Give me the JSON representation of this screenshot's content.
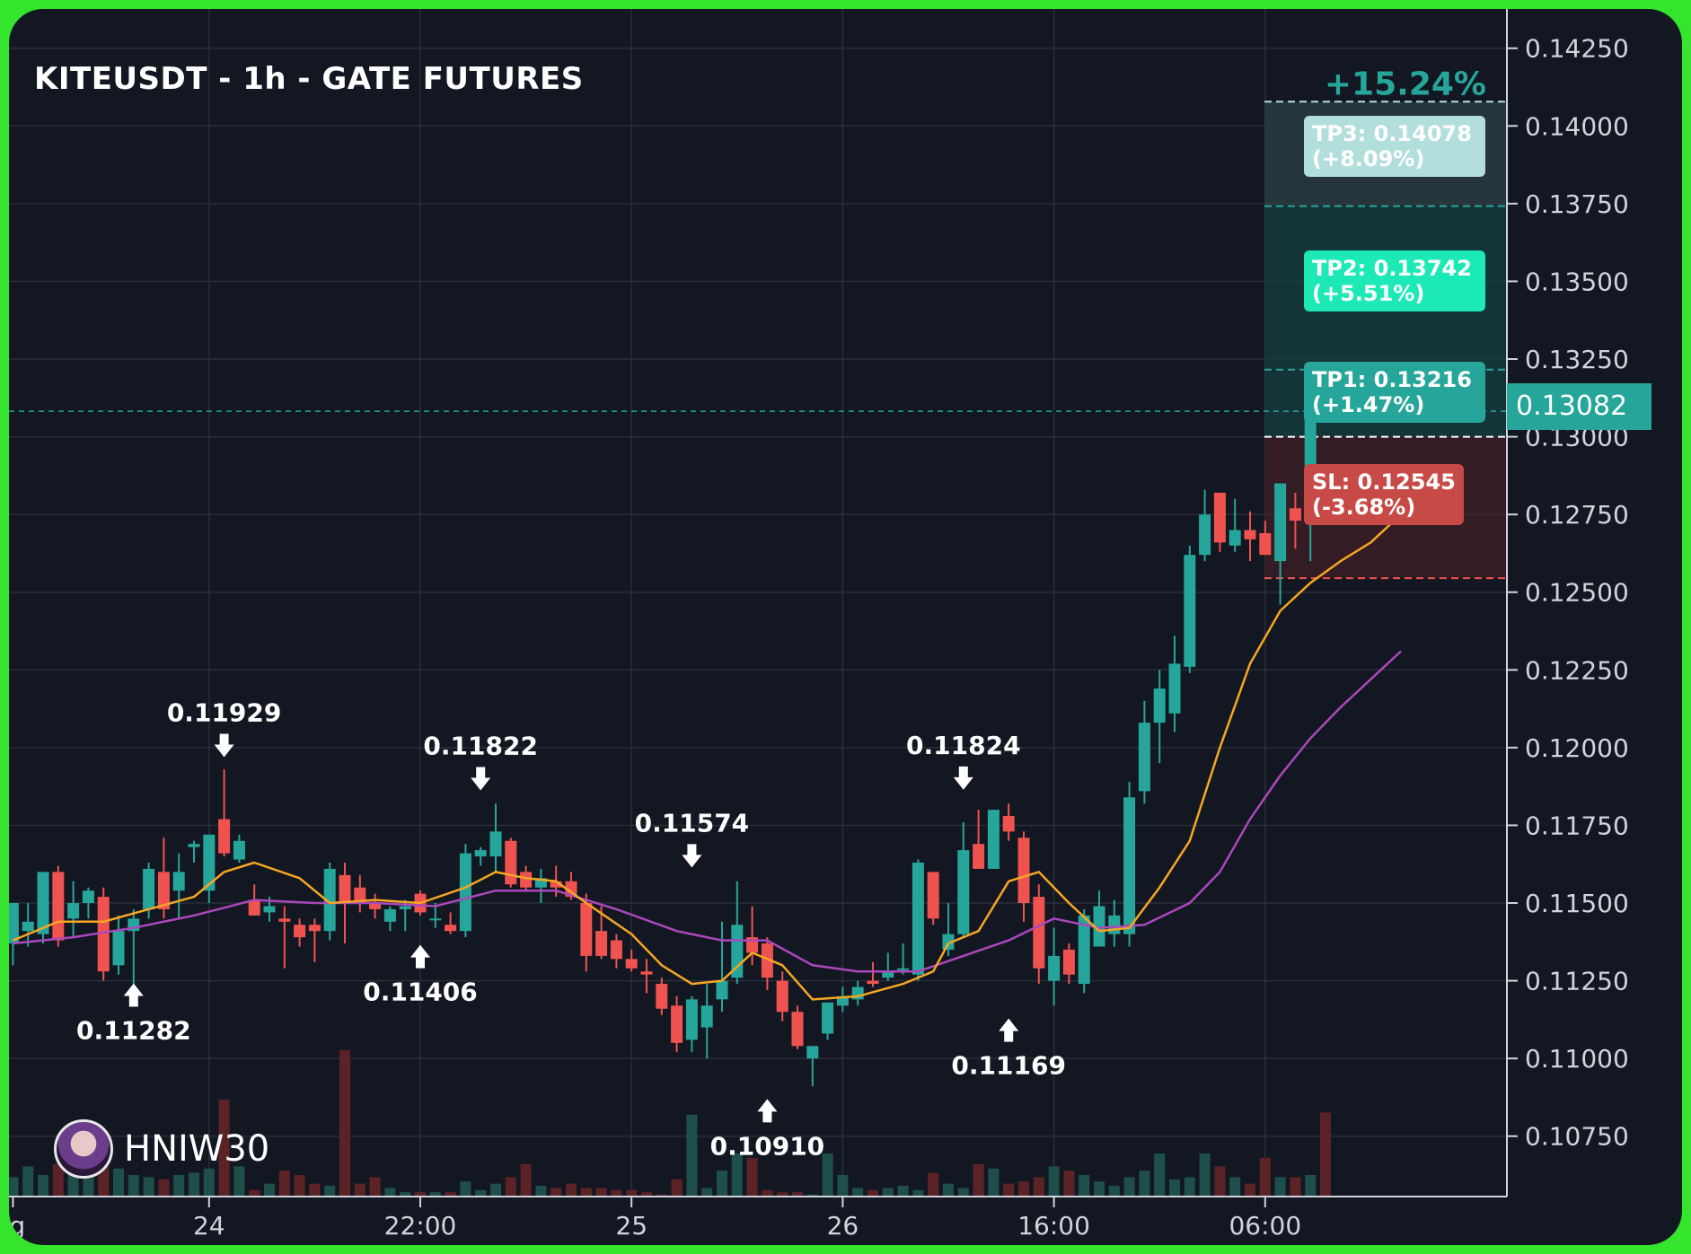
{
  "title": "KITEUSDT - 1h - GATE FUTURES",
  "watermark": {
    "icon": "avatar-icon",
    "text": "HNIW30"
  },
  "colors": {
    "background": "#131722",
    "border": "#35e42c",
    "up": "#26a69a",
    "down": "#ef5350",
    "ema_fast": "#f5a623",
    "ema_slow": "#ab47bc",
    "grid": "#2a2e39"
  },
  "chart_data": {
    "type": "candlestick",
    "y_axis": {
      "ticks": [
        "0.14250",
        "0.14000",
        "0.13750",
        "0.13500",
        "0.13250",
        "0.13000",
        "0.12750",
        "0.12500",
        "0.12250",
        "0.12000",
        "0.11750",
        "0.11500",
        "0.11250",
        "0.11000",
        "0.10750"
      ],
      "range": [
        0.1055,
        0.1433
      ]
    },
    "x_axis": {
      "ticks": [
        {
          "label": "g",
          "index": 0
        },
        {
          "label": "24",
          "index": 13
        },
        {
          "label": "22:00",
          "index": 27
        },
        {
          "label": "25",
          "index": 41
        },
        {
          "label": "26",
          "index": 55
        },
        {
          "label": "16:00",
          "index": 69
        },
        {
          "label": "06:00",
          "index": 83
        }
      ]
    },
    "candles": [
      {
        "o": 0.1137,
        "h": 0.115,
        "l": 0.113,
        "c": 0.115
      },
      {
        "o": 0.1141,
        "h": 0.115,
        "l": 0.1136,
        "c": 0.1144
      },
      {
        "o": 0.114,
        "h": 0.116,
        "l": 0.1137,
        "c": 0.116
      },
      {
        "o": 0.116,
        "h": 0.1162,
        "l": 0.1136,
        "c": 0.1138
      },
      {
        "o": 0.1145,
        "h": 0.1157,
        "l": 0.1139,
        "c": 0.115
      },
      {
        "o": 0.115,
        "h": 0.1155,
        "l": 0.1145,
        "c": 0.1154
      },
      {
        "o": 0.1152,
        "h": 0.1155,
        "l": 0.1125,
        "c": 0.1128
      },
      {
        "o": 0.113,
        "h": 0.1146,
        "l": 0.1127,
        "c": 0.1141
      },
      {
        "o": 0.1141,
        "h": 0.1148,
        "l": 0.1124,
        "c": 0.1145
      },
      {
        "o": 0.1148,
        "h": 0.1163,
        "l": 0.1145,
        "c": 0.1161
      },
      {
        "o": 0.116,
        "h": 0.1171,
        "l": 0.1145,
        "c": 0.1148
      },
      {
        "o": 0.1154,
        "h": 0.1166,
        "l": 0.1145,
        "c": 0.116
      },
      {
        "o": 0.1168,
        "h": 0.117,
        "l": 0.1163,
        "c": 0.1169
      },
      {
        "o": 0.1154,
        "h": 0.1172,
        "l": 0.115,
        "c": 0.1172
      },
      {
        "o": 0.1177,
        "h": 0.1193,
        "l": 0.1165,
        "c": 0.1166
      },
      {
        "o": 0.1164,
        "h": 0.1172,
        "l": 0.1163,
        "c": 0.117
      },
      {
        "o": 0.1151,
        "h": 0.1156,
        "l": 0.1146,
        "c": 0.1146
      },
      {
        "o": 0.1147,
        "h": 0.1152,
        "l": 0.1144,
        "c": 0.1149
      },
      {
        "o": 0.1145,
        "h": 0.1149,
        "l": 0.1129,
        "c": 0.1144
      },
      {
        "o": 0.1143,
        "h": 0.1145,
        "l": 0.1136,
        "c": 0.1139
      },
      {
        "o": 0.1143,
        "h": 0.1145,
        "l": 0.1131,
        "c": 0.1141
      },
      {
        "o": 0.1141,
        "h": 0.1163,
        "l": 0.1138,
        "c": 0.1161
      },
      {
        "o": 0.1159,
        "h": 0.1163,
        "l": 0.1137,
        "c": 0.115
      },
      {
        "o": 0.1155,
        "h": 0.1159,
        "l": 0.1147,
        "c": 0.115
      },
      {
        "o": 0.115,
        "h": 0.1153,
        "l": 0.1145,
        "c": 0.1148
      },
      {
        "o": 0.1144,
        "h": 0.1149,
        "l": 0.1141,
        "c": 0.1148
      },
      {
        "o": 0.1148,
        "h": 0.1151,
        "l": 0.1141,
        "c": 0.1149
      },
      {
        "o": 0.1153,
        "h": 0.1154,
        "l": 0.1146,
        "c": 0.1147
      },
      {
        "o": 0.1145,
        "h": 0.115,
        "l": 0.1142,
        "c": 0.1145
      },
      {
        "o": 0.1143,
        "h": 0.1147,
        "l": 0.114,
        "c": 0.1141
      },
      {
        "o": 0.1141,
        "h": 0.1169,
        "l": 0.1139,
        "c": 0.1166
      },
      {
        "o": 0.1165,
        "h": 0.1168,
        "l": 0.1162,
        "c": 0.1167
      },
      {
        "o": 0.1165,
        "h": 0.1182,
        "l": 0.116,
        "c": 0.1173
      },
      {
        "o": 0.117,
        "h": 0.1171,
        "l": 0.1155,
        "c": 0.1156
      },
      {
        "o": 0.116,
        "h": 0.1162,
        "l": 0.1154,
        "c": 0.1155
      },
      {
        "o": 0.1155,
        "h": 0.1161,
        "l": 0.115,
        "c": 0.1158
      },
      {
        "o": 0.1157,
        "h": 0.1162,
        "l": 0.1152,
        "c": 0.1155
      },
      {
        "o": 0.1157,
        "h": 0.116,
        "l": 0.1151,
        "c": 0.1152
      },
      {
        "o": 0.115,
        "h": 0.1153,
        "l": 0.1128,
        "c": 0.1133
      },
      {
        "o": 0.1141,
        "h": 0.1149,
        "l": 0.1132,
        "c": 0.1133
      },
      {
        "o": 0.1138,
        "h": 0.114,
        "l": 0.1129,
        "c": 0.1132
      },
      {
        "o": 0.1132,
        "h": 0.1135,
        "l": 0.1128,
        "c": 0.1129
      },
      {
        "o": 0.1128,
        "h": 0.1132,
        "l": 0.1121,
        "c": 0.1127
      },
      {
        "o": 0.1124,
        "h": 0.1126,
        "l": 0.1114,
        "c": 0.1116
      },
      {
        "o": 0.1117,
        "h": 0.112,
        "l": 0.1102,
        "c": 0.1105
      },
      {
        "o": 0.1106,
        "h": 0.112,
        "l": 0.1102,
        "c": 0.1119
      },
      {
        "o": 0.111,
        "h": 0.1124,
        "l": 0.11,
        "c": 0.1117
      },
      {
        "o": 0.1119,
        "h": 0.1144,
        "l": 0.1115,
        "c": 0.1125
      },
      {
        "o": 0.1126,
        "h": 0.1157,
        "l": 0.1124,
        "c": 0.1143
      },
      {
        "o": 0.1139,
        "h": 0.1149,
        "l": 0.113,
        "c": 0.1134
      },
      {
        "o": 0.1137,
        "h": 0.1139,
        "l": 0.1122,
        "c": 0.1126
      },
      {
        "o": 0.1125,
        "h": 0.1128,
        "l": 0.1112,
        "c": 0.1115
      },
      {
        "o": 0.1115,
        "h": 0.1117,
        "l": 0.1103,
        "c": 0.1104
      },
      {
        "o": 0.11,
        "h": 0.1101,
        "l": 0.1091,
        "c": 0.1104
      },
      {
        "o": 0.1108,
        "h": 0.1118,
        "l": 0.1106,
        "c": 0.1118
      },
      {
        "o": 0.1117,
        "h": 0.1123,
        "l": 0.1115,
        "c": 0.112
      },
      {
        "o": 0.1119,
        "h": 0.1125,
        "l": 0.1117,
        "c": 0.1123
      },
      {
        "o": 0.1125,
        "h": 0.1131,
        "l": 0.1123,
        "c": 0.1124
      },
      {
        "o": 0.1126,
        "h": 0.1134,
        "l": 0.1125,
        "c": 0.1128
      },
      {
        "o": 0.1129,
        "h": 0.1137,
        "l": 0.1127,
        "c": 0.1129
      },
      {
        "o": 0.1127,
        "h": 0.1164,
        "l": 0.1125,
        "c": 0.1163
      },
      {
        "o": 0.116,
        "h": 0.116,
        "l": 0.1143,
        "c": 0.1145
      },
      {
        "o": 0.1135,
        "h": 0.115,
        "l": 0.1133,
        "c": 0.114
      },
      {
        "o": 0.114,
        "h": 0.1176,
        "l": 0.1139,
        "c": 0.1167
      },
      {
        "o": 0.1169,
        "h": 0.118,
        "l": 0.1163,
        "c": 0.1161
      },
      {
        "o": 0.1161,
        "h": 0.118,
        "l": 0.1161,
        "c": 0.118
      },
      {
        "o": 0.1178,
        "h": 0.1182,
        "l": 0.117,
        "c": 0.1173
      },
      {
        "o": 0.1171,
        "h": 0.1173,
        "l": 0.1144,
        "c": 0.115
      },
      {
        "o": 0.1152,
        "h": 0.1156,
        "l": 0.1124,
        "c": 0.1129
      },
      {
        "o": 0.1125,
        "h": 0.1142,
        "l": 0.1117,
        "c": 0.1133
      },
      {
        "o": 0.1135,
        "h": 0.1137,
        "l": 0.1124,
        "c": 0.1127
      },
      {
        "o": 0.1124,
        "h": 0.1148,
        "l": 0.1121,
        "c": 0.1146
      },
      {
        "o": 0.1136,
        "h": 0.1154,
        "l": 0.1136,
        "c": 0.1149
      },
      {
        "o": 0.114,
        "h": 0.1151,
        "l": 0.1136,
        "c": 0.1146
      },
      {
        "o": 0.114,
        "h": 0.1189,
        "l": 0.1136,
        "c": 0.1184
      },
      {
        "o": 0.1186,
        "h": 0.1215,
        "l": 0.1182,
        "c": 0.1208
      },
      {
        "o": 0.1208,
        "h": 0.1225,
        "l": 0.1195,
        "c": 0.1219
      },
      {
        "o": 0.1211,
        "h": 0.1236,
        "l": 0.1205,
        "c": 0.1227
      },
      {
        "o": 0.1226,
        "h": 0.1265,
        "l": 0.1224,
        "c": 0.1262
      },
      {
        "o": 0.1262,
        "h": 0.1283,
        "l": 0.126,
        "c": 0.1275
      },
      {
        "o": 0.1282,
        "h": 0.1282,
        "l": 0.1263,
        "c": 0.1266
      },
      {
        "o": 0.1265,
        "h": 0.128,
        "l": 0.1263,
        "c": 0.127
      },
      {
        "o": 0.127,
        "h": 0.1276,
        "l": 0.126,
        "c": 0.1267
      },
      {
        "o": 0.1269,
        "h": 0.1273,
        "l": 0.1262,
        "c": 0.1262
      },
      {
        "o": 0.126,
        "h": 0.1285,
        "l": 0.1246,
        "c": 0.1285
      },
      {
        "o": 0.1277,
        "h": 0.1282,
        "l": 0.1264,
        "c": 0.1273
      },
      {
        "o": 0.1278,
        "h": 0.131,
        "l": 0.126,
        "c": 0.1308
      }
    ],
    "volumes": [
      9,
      14,
      10,
      15,
      12,
      10,
      14,
      13,
      10,
      9,
      8,
      10,
      11,
      13,
      45,
      14,
      3,
      6,
      12,
      10,
      6,
      5,
      68,
      6,
      9,
      4,
      2,
      2,
      2,
      2,
      7,
      3,
      6,
      9,
      15,
      5,
      4,
      6,
      4,
      4,
      3,
      3,
      2,
      1,
      8,
      38,
      4,
      12,
      20,
      18,
      3,
      2,
      2,
      1,
      20,
      10,
      4,
      3,
      4,
      5,
      3,
      11,
      6,
      4,
      15,
      13,
      6,
      7,
      9,
      14,
      12,
      10,
      7,
      5,
      9,
      12,
      20,
      8,
      9,
      20,
      14,
      9,
      6,
      18,
      9,
      9,
      10,
      39
    ],
    "ema_fast": [
      [
        0,
        0.1138
      ],
      [
        3,
        0.1144
      ],
      [
        6,
        0.1144
      ],
      [
        9,
        0.1148
      ],
      [
        12,
        0.1152
      ],
      [
        14,
        0.116
      ],
      [
        16,
        0.1163
      ],
      [
        19,
        0.1158
      ],
      [
        21,
        0.115
      ],
      [
        24,
        0.1151
      ],
      [
        27,
        0.115
      ],
      [
        30,
        0.1155
      ],
      [
        32,
        0.116
      ],
      [
        34,
        0.1158
      ],
      [
        36,
        0.1157
      ],
      [
        38,
        0.115
      ],
      [
        41,
        0.114
      ],
      [
        43,
        0.113
      ],
      [
        45,
        0.1124
      ],
      [
        47,
        0.1125
      ],
      [
        49,
        0.1134
      ],
      [
        51,
        0.113
      ],
      [
        53,
        0.1119
      ],
      [
        56,
        0.112
      ],
      [
        59,
        0.1124
      ],
      [
        61,
        0.1128
      ],
      [
        62,
        0.1137
      ],
      [
        64,
        0.1141
      ],
      [
        66,
        0.1157
      ],
      [
        68,
        0.116
      ],
      [
        70,
        0.115
      ],
      [
        72,
        0.1141
      ],
      [
        74,
        0.1142
      ],
      [
        76,
        0.1155
      ],
      [
        78,
        0.117
      ],
      [
        80,
        0.12
      ],
      [
        82,
        0.1227
      ],
      [
        84,
        0.1244
      ],
      [
        86,
        0.1253
      ],
      [
        88,
        0.126
      ],
      [
        90,
        0.1266
      ],
      [
        92,
        0.1275
      ]
    ],
    "ema_slow": [
      [
        0,
        0.1137
      ],
      [
        4,
        0.1139
      ],
      [
        8,
        0.1142
      ],
      [
        12,
        0.1146
      ],
      [
        16,
        0.1151
      ],
      [
        20,
        0.115
      ],
      [
        24,
        0.115
      ],
      [
        28,
        0.1149
      ],
      [
        32,
        0.1154
      ],
      [
        36,
        0.1154
      ],
      [
        40,
        0.1148
      ],
      [
        44,
        0.1141
      ],
      [
        47,
        0.1138
      ],
      [
        50,
        0.1138
      ],
      [
        53,
        0.113
      ],
      [
        56,
        0.1128
      ],
      [
        60,
        0.1128
      ],
      [
        63,
        0.1133
      ],
      [
        66,
        0.1138
      ],
      [
        69,
        0.1145
      ],
      [
        72,
        0.1142
      ],
      [
        75,
        0.1143
      ],
      [
        78,
        0.115
      ],
      [
        80,
        0.116
      ],
      [
        82,
        0.1177
      ],
      [
        84,
        0.1191
      ],
      [
        86,
        0.1203
      ],
      [
        88,
        0.1213
      ],
      [
        90,
        0.1222
      ],
      [
        92,
        0.1231
      ]
    ],
    "swing_labels": [
      {
        "text": "0.11929",
        "index": 14,
        "price": 0.11929,
        "type": "high"
      },
      {
        "text": "0.11822",
        "index": 31,
        "price": 0.11822,
        "type": "high"
      },
      {
        "text": "0.11574",
        "index": 45,
        "price": 0.11574,
        "type": "high"
      },
      {
        "text": "0.11824",
        "index": 63,
        "price": 0.11824,
        "type": "high"
      },
      {
        "text": "0.11282",
        "index": 8,
        "price": 0.11282,
        "type": "low"
      },
      {
        "text": "0.11406",
        "index": 27,
        "price": 0.11406,
        "type": "low"
      },
      {
        "text": "0.10910",
        "index": 50,
        "price": 0.1091,
        "type": "low"
      },
      {
        "text": "0.11169",
        "index": 66,
        "price": 0.11169,
        "type": "low"
      }
    ],
    "current_price": {
      "value": 0.13082,
      "label": "0.13082"
    },
    "entry_price": 0.13,
    "targets": [
      {
        "name": "TP3",
        "price": 0.14078,
        "label": "TP3: 0.14078",
        "pct": "(+8.09%)",
        "color": "#b2dfdb"
      },
      {
        "name": "TP2",
        "price": 0.13742,
        "label": "TP2: 0.13742",
        "pct": "(+5.51%)",
        "color": "#1de9b6"
      },
      {
        "name": "TP1",
        "price": 0.13216,
        "label": "TP1: 0.13216",
        "pct": "(+1.47%)",
        "color": "#26a69a"
      }
    ],
    "stop_loss": {
      "price": 0.12545,
      "label": "SL: 0.12545",
      "pct": "(-3.68%)",
      "color": "#ef5350"
    },
    "total_gain": {
      "label": "+15.24%",
      "price": 0.14078
    },
    "grid": true
  }
}
